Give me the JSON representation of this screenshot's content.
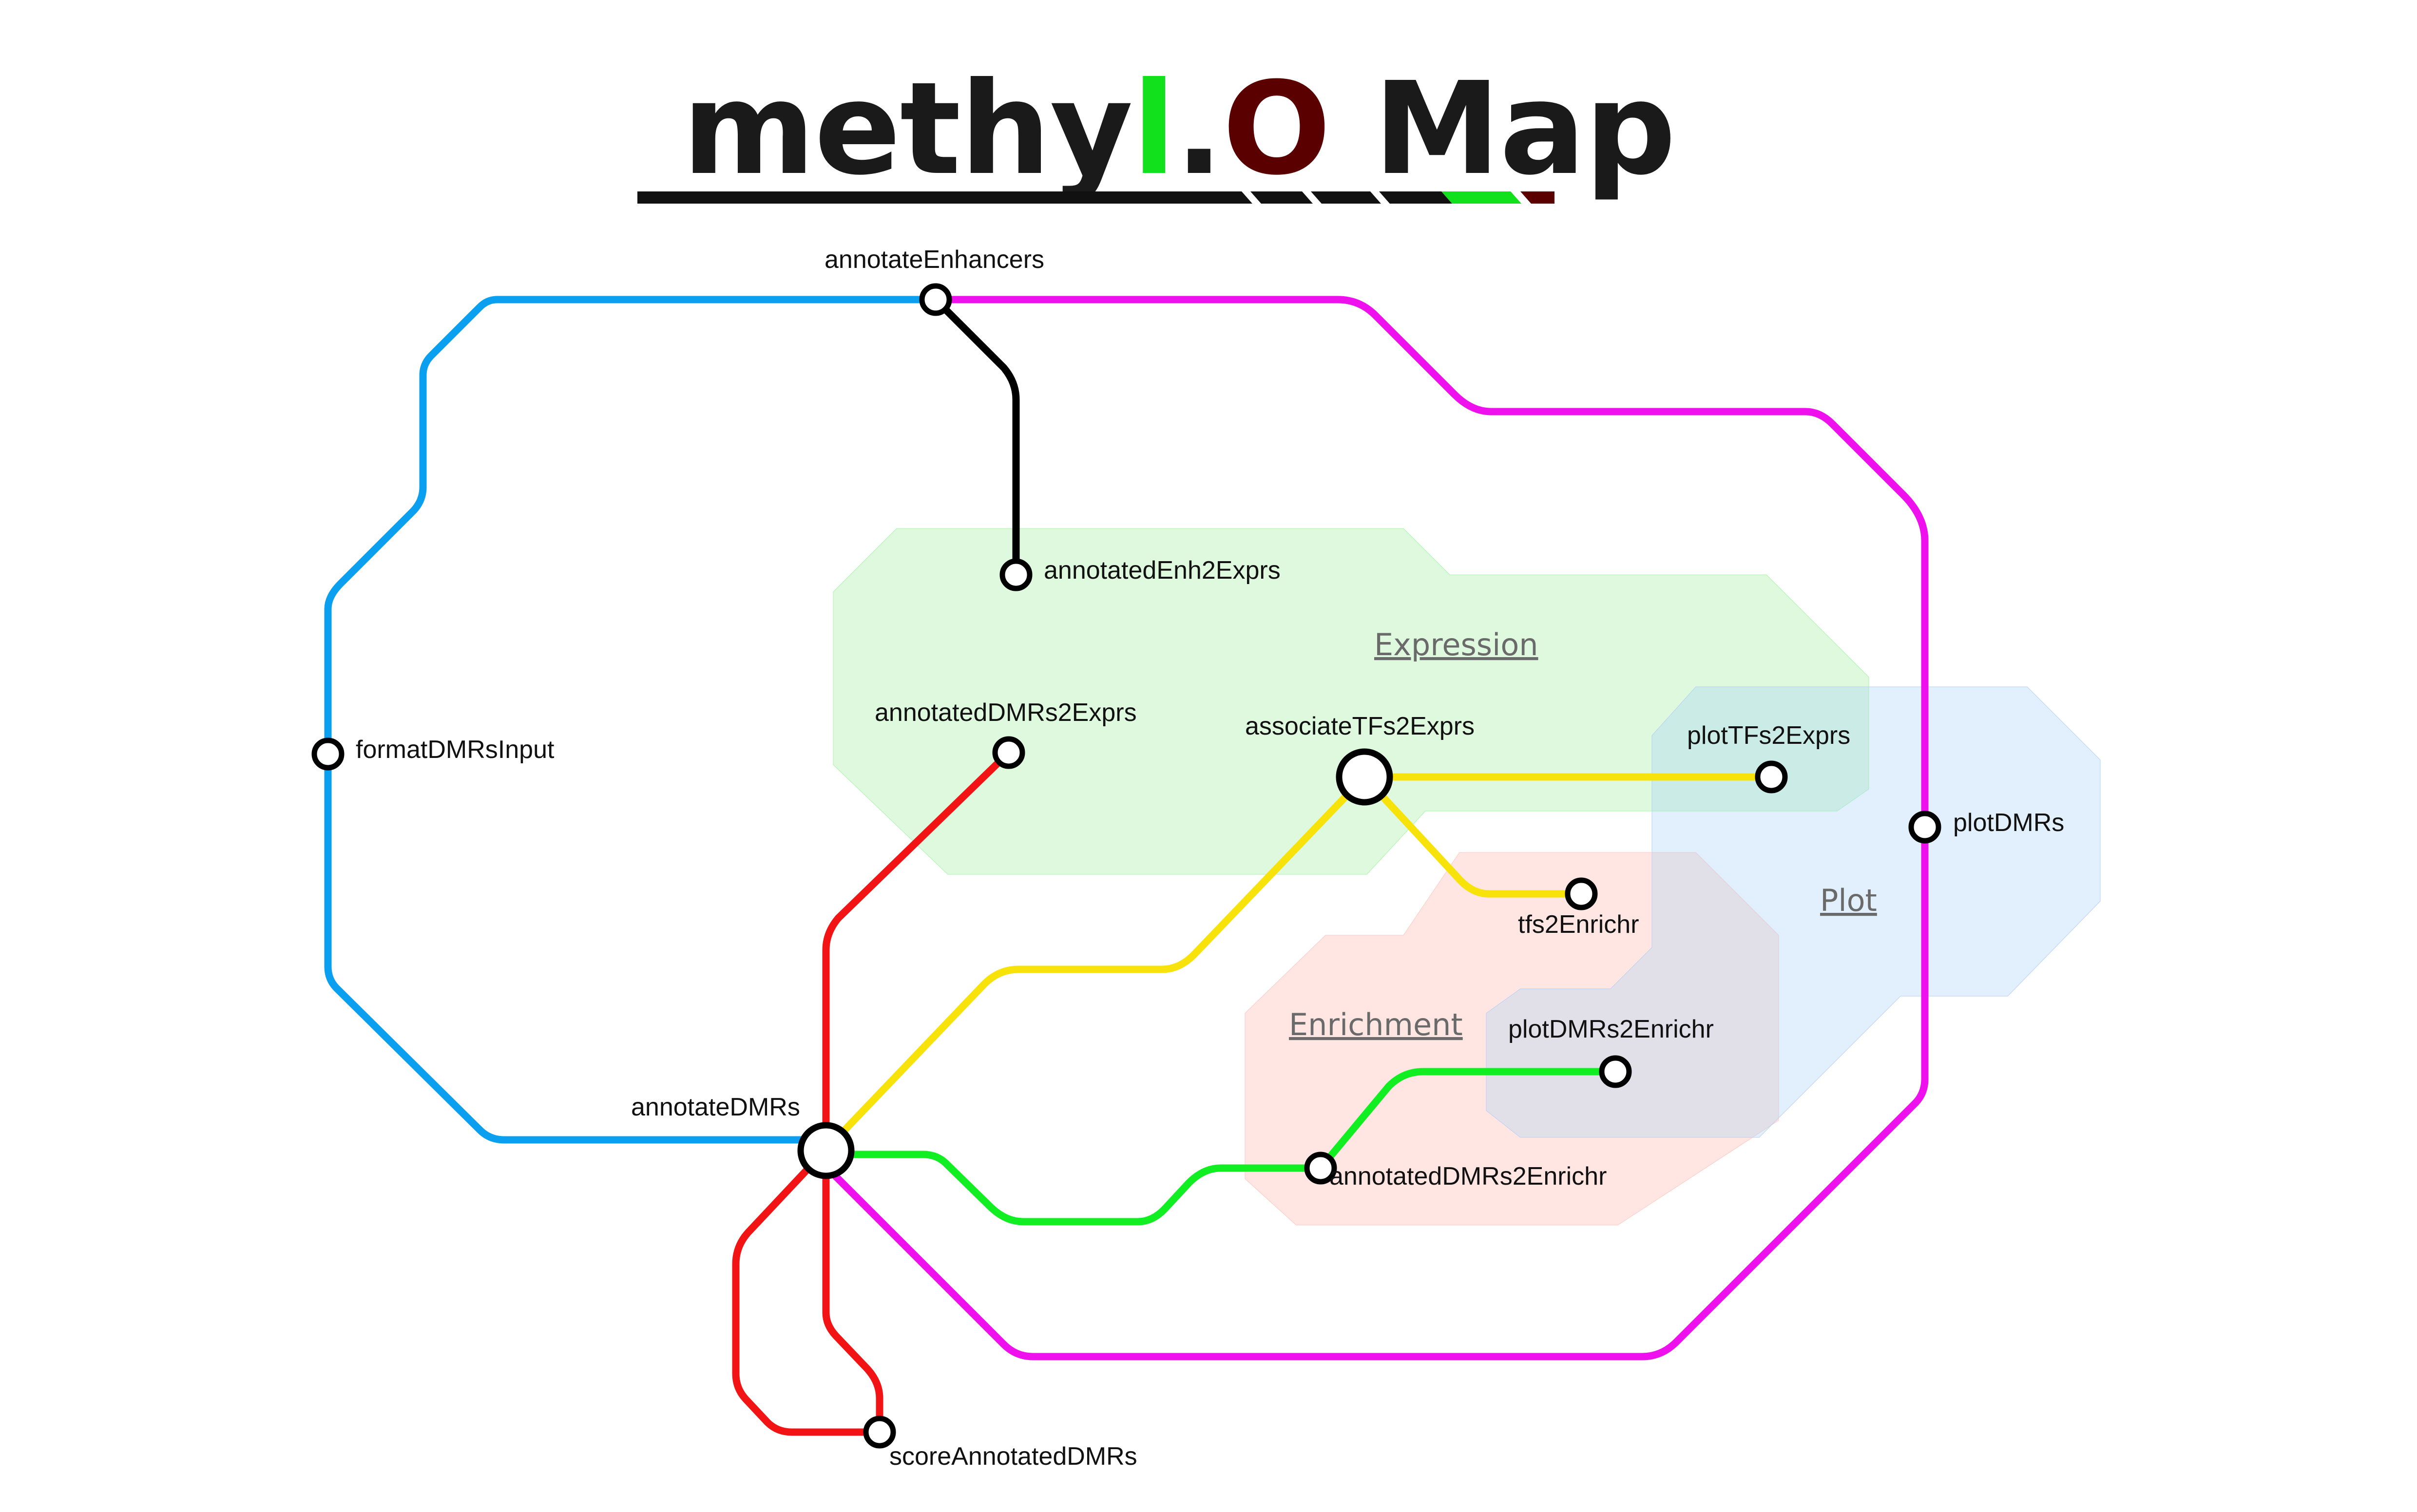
{
  "title": {
    "part1": "methy",
    "part2": "l",
    "part3": ".",
    "part4": "O",
    "part5": " Map"
  },
  "colors": {
    "title_dark": "#1a1a1a",
    "title_green": "#11e11c",
    "title_maroon": "#5a0000",
    "line_blue": "#0b9ff0",
    "line_magenta": "#ee11ee",
    "line_black": "#000000",
    "line_red": "#f21414",
    "line_yellow": "#f7e20a",
    "line_green": "#11ee22",
    "zone_expression": "#b3f5b3",
    "zone_enrichment": "#ffc8c0",
    "zone_plot": "#bfdff8"
  },
  "zones": {
    "expression": "Expression",
    "enrichment": "Enrichment",
    "plot": "Plot"
  },
  "stations": {
    "annotateEnhancers": "annotateEnhancers",
    "annotatedEnh2Exprs": "annotatedEnh2Exprs",
    "formatDMRsInput": "formatDMRsInput",
    "annotatedDMRs2Exprs": "annotatedDMRs2Exprs",
    "associateTFs2Exprs": "associateTFs2Exprs",
    "plotTFs2Exprs": "plotTFs2Exprs",
    "plotDMRs": "plotDMRs",
    "tfs2Enrichr": "tfs2Enrichr",
    "plotDMRs2Enrichr": "plotDMRs2Enrichr",
    "annotateDMRs": "annotateDMRs",
    "annotatedDMRs2Enrichr": "annotatedDMRs2Enrichr",
    "scoreAnnotatedDMRs": "scoreAnnotatedDMRs"
  }
}
